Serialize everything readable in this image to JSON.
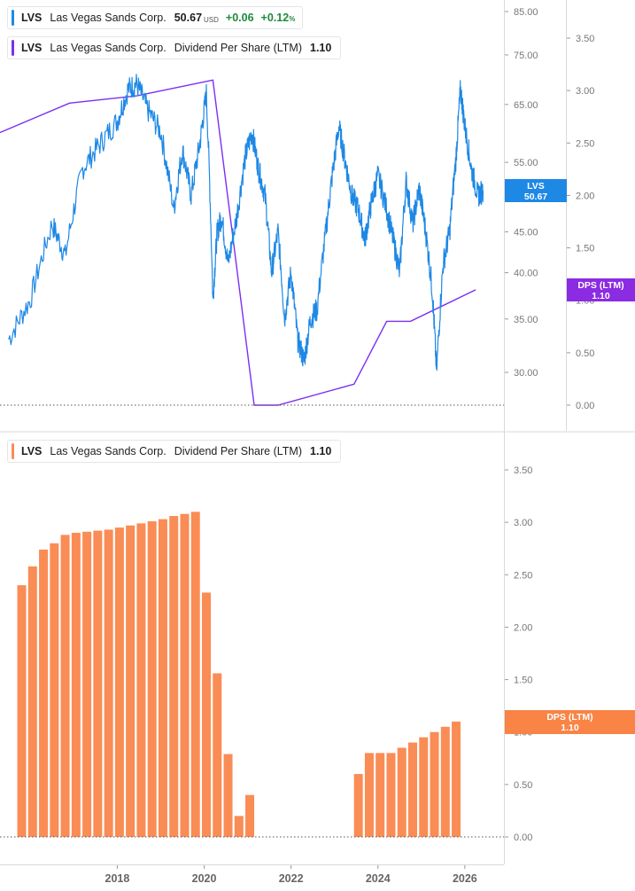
{
  "legends": {
    "price": {
      "ticker": "LVS",
      "name": "Las Vegas Sands Corp.",
      "value": "50.67",
      "unit": "USD",
      "change": "+0.06",
      "change_pct": "+0.12",
      "pct_sign": "%"
    },
    "dps_top": {
      "ticker": "LVS",
      "name": "Las Vegas Sands Corp.",
      "metric": "Dividend Per Share (LTM)",
      "value": "1.10"
    },
    "dps_bottom": {
      "ticker": "LVS",
      "name": "Las Vegas Sands Corp.",
      "metric": "Dividend Per Share (LTM)",
      "value": "1.10"
    }
  },
  "tags": {
    "price": {
      "line1": "LVS",
      "line2": "50.67"
    },
    "dps_top": {
      "line1": "DPS (LTM)",
      "line2": "1.10"
    },
    "dps_bottom": {
      "line1": "DPS (LTM)",
      "line2": "1.10"
    }
  },
  "colors": {
    "price": "#1e88e5",
    "dps_line": "#7b2ff2",
    "bars": "#fa8c55",
    "tag_price": "#1e88e5",
    "tag_dps_top": "#8b2be2",
    "tag_dps_bottom": "#f98445",
    "axis_text": "#777777",
    "grid": "#e6e6e6"
  },
  "chart_data": [
    {
      "type": "line",
      "title": "",
      "series": [
        {
          "name": "LVS",
          "x": [
            2015.5,
            2016.0,
            2016.5,
            2016.8,
            2017.2,
            2017.6,
            2018.0,
            2018.25,
            2018.45,
            2018.7,
            2019.0,
            2019.3,
            2019.5,
            2019.7,
            2019.9,
            2020.05,
            2020.2,
            2020.3,
            2020.4,
            2020.55,
            2020.75,
            2020.95,
            2021.1,
            2021.25,
            2021.4,
            2021.55,
            2021.7,
            2021.85,
            2022.0,
            2022.15,
            2022.3,
            2022.45,
            2022.6,
            2022.8,
            2022.95,
            2023.1,
            2023.25,
            2023.4,
            2023.55,
            2023.7,
            2023.85,
            2024.0,
            2024.2,
            2024.35,
            2024.5,
            2024.65,
            2024.8,
            2024.95,
            2025.1,
            2025.25,
            2025.35,
            2025.5,
            2025.65,
            2025.8,
            2025.9,
            2026.0,
            2026.15,
            2026.3,
            2026.42
          ],
          "values": [
            33,
            37,
            46,
            42,
            54,
            58,
            62,
            68,
            69,
            64,
            60,
            48,
            57,
            50,
            58,
            67,
            37,
            45,
            47,
            41,
            47,
            56,
            60,
            54,
            50,
            40,
            45,
            35,
            40,
            33,
            31,
            35,
            36,
            45,
            53,
            61,
            55,
            50,
            48,
            44,
            49,
            53,
            48,
            44,
            40,
            52,
            46,
            51,
            45,
            38,
            30,
            41,
            45,
            56,
            68,
            61,
            54,
            50,
            50.67
          ]
        }
      ],
      "xlabel": "",
      "ylabel": "",
      "xlim": [
        2015.3,
        2026.9
      ],
      "ylim": [
        25,
        88
      ],
      "xticks": [
        "2018",
        "2020",
        "2022",
        "2024",
        "2026"
      ],
      "yticks": [
        "30.00",
        "35.00",
        "40.00",
        "45.00",
        "55.00",
        "65.00",
        "75.00",
        "85.00"
      ],
      "scale": "log",
      "grid": false,
      "legend": "top-left"
    },
    {
      "type": "line",
      "title": "",
      "series": [
        {
          "name": "Dividend Per Share (LTM)",
          "x": [
            2015.3,
            2016.9,
            2018.45,
            2020.2,
            2021.15,
            2021.7,
            2023.45,
            2024.2,
            2024.75,
            2026.25
          ],
          "values": [
            2.6,
            2.88,
            2.95,
            3.1,
            0.0,
            0.0,
            0.2,
            0.8,
            0.8,
            1.1
          ]
        }
      ],
      "ylim": [
        -0.6,
        3.85
      ],
      "yticks": [
        "0.00",
        "0.50",
        "1.00",
        "1.50",
        "2.00",
        "2.50",
        "3.00",
        "3.50"
      ]
    },
    {
      "type": "bar",
      "title": "",
      "series": [
        {
          "name": "Dividend Per Share (LTM)",
          "x": [
            2015.8,
            2016.05,
            2016.3,
            2016.55,
            2016.8,
            2017.05,
            2017.3,
            2017.55,
            2017.8,
            2018.05,
            2018.3,
            2018.55,
            2018.8,
            2019.05,
            2019.3,
            2019.55,
            2019.8,
            2020.05,
            2020.3,
            2020.55,
            2020.8,
            2021.05,
            2023.55,
            2023.8,
            2024.05,
            2024.3,
            2024.55,
            2024.8,
            2025.05,
            2025.3,
            2025.55,
            2025.8,
            2026.05,
            2026.3
          ],
          "values": [
            2.4,
            2.58,
            2.74,
            2.8,
            2.88,
            2.9,
            2.91,
            2.92,
            2.93,
            2.95,
            2.97,
            2.99,
            3.01,
            3.03,
            3.06,
            3.08,
            3.1,
            2.33,
            1.56,
            0.79,
            0.2,
            0.4,
            0.6,
            0.8,
            0.8,
            0.8,
            0.85,
            0.9,
            0.95,
            1.0,
            1.05,
            1.1,
            0.0,
            0.0
          ]
        }
      ],
      "xlim": [
        2015.3,
        2026.9
      ],
      "ylim": [
        0,
        3.6
      ],
      "xticks": [
        "2018",
        "2020",
        "2022",
        "2024",
        "2026"
      ],
      "yticks": [
        "0.00",
        "0.50",
        "1.00",
        "1.50",
        "2.00",
        "2.50",
        "3.00",
        "3.50"
      ],
      "grid": false,
      "legend": "top-left"
    }
  ]
}
